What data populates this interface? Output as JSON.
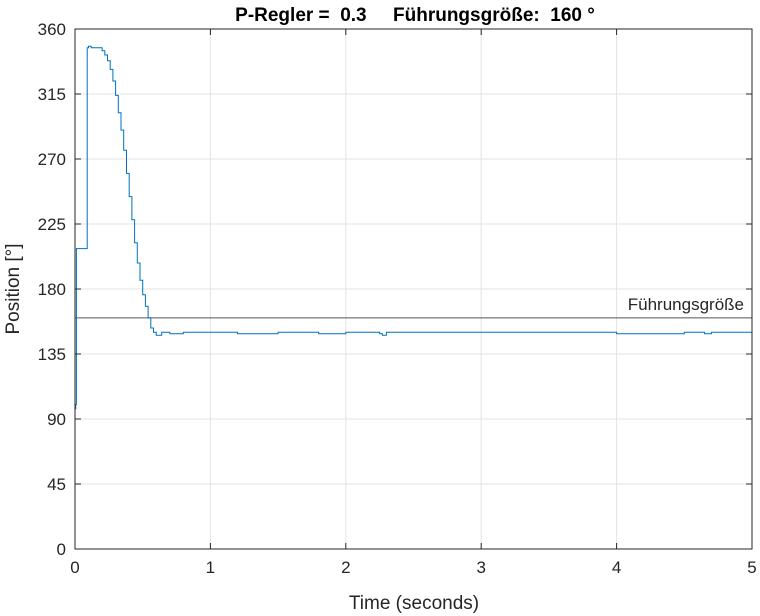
{
  "chart_data": {
    "type": "line",
    "title": "P-Regler =  0.3     Führungsgröße:  160 °",
    "xlabel": "Time (seconds)",
    "ylabel": "Position [°]",
    "xlim": [
      0,
      5
    ],
    "ylim": [
      0,
      360
    ],
    "xticks": [
      0,
      1,
      2,
      3,
      4,
      5
    ],
    "xtick_labels": [
      "0",
      "1",
      "2",
      "3",
      "4",
      "5"
    ],
    "yticks": [
      0,
      45,
      90,
      135,
      180,
      225,
      270,
      315,
      360
    ],
    "ytick_labels": [
      "0",
      "45",
      "90",
      "135",
      "180",
      "225",
      "270",
      "315",
      "360"
    ],
    "grid": true,
    "reference_line": {
      "value": 160,
      "label": "Führungsgröße",
      "color": "#555555"
    },
    "series": [
      {
        "color": "#0072BD",
        "x": [
          0.0,
          0.005,
          0.01,
          0.02,
          0.03,
          0.04,
          0.05,
          0.06,
          0.07,
          0.08,
          0.09,
          0.1,
          0.12,
          0.15,
          0.2,
          0.22,
          0.24,
          0.26,
          0.28,
          0.3,
          0.32,
          0.34,
          0.36,
          0.38,
          0.4,
          0.42,
          0.44,
          0.46,
          0.48,
          0.5,
          0.52,
          0.54,
          0.56,
          0.58,
          0.6,
          0.62,
          0.64,
          0.7,
          0.8,
          1.0,
          1.2,
          1.5,
          1.8,
          2.0,
          2.2,
          2.25,
          2.27,
          2.3,
          2.5,
          3.0,
          3.5,
          4.0,
          4.5,
          4.6,
          4.65,
          4.7,
          4.8,
          5.0
        ],
        "y": [
          97,
          100,
          208,
          208,
          208,
          208,
          208,
          208,
          208,
          208,
          347,
          348,
          347,
          347,
          345,
          342,
          338,
          332,
          324,
          314,
          302,
          290,
          276,
          260,
          244,
          228,
          212,
          198,
          186,
          176,
          168,
          160,
          153,
          150,
          148,
          148,
          150,
          149,
          150,
          150,
          149,
          150,
          149,
          150,
          150,
          149,
          148,
          150,
          150,
          150,
          150,
          149,
          150,
          150,
          149,
          150,
          150,
          150
        ]
      }
    ]
  }
}
